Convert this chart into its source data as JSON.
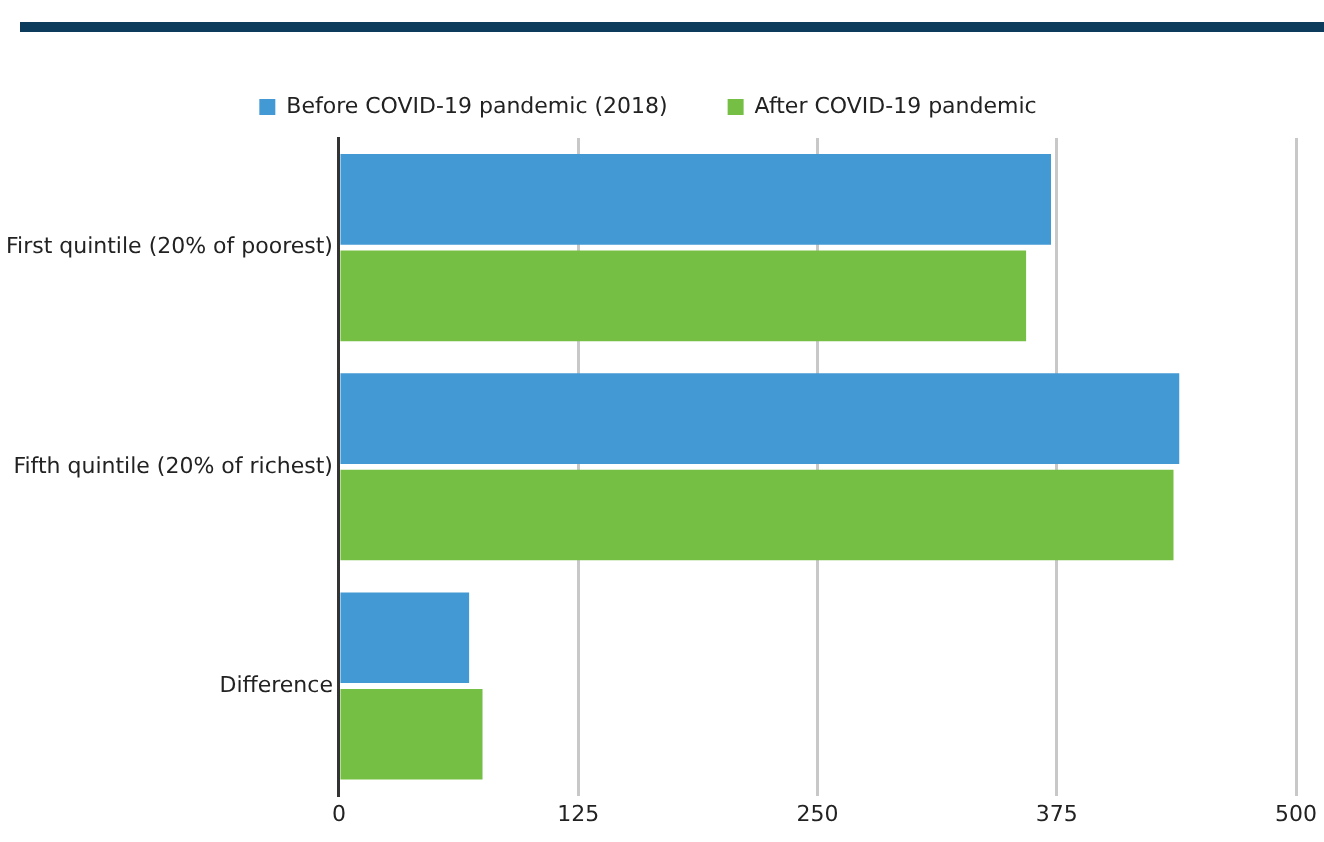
{
  "chart_data": {
    "type": "bar",
    "orientation": "horizontal",
    "categories": [
      "First quintile (20% of poorest)",
      "Fifth quintile (20% of richest)",
      "Difference"
    ],
    "series": [
      {
        "name": "Before COVID-19 pandemic (2018)",
        "color": "#4399d4",
        "values": [
          372,
          439,
          68
        ]
      },
      {
        "name": "After COVID-19 pandemic",
        "color": "#76bf45",
        "values": [
          359,
          436,
          75
        ]
      }
    ],
    "xlim": [
      0,
      500
    ],
    "xticks": [
      0,
      125,
      250,
      375,
      500
    ],
    "grid": "x",
    "legend": "top"
  }
}
